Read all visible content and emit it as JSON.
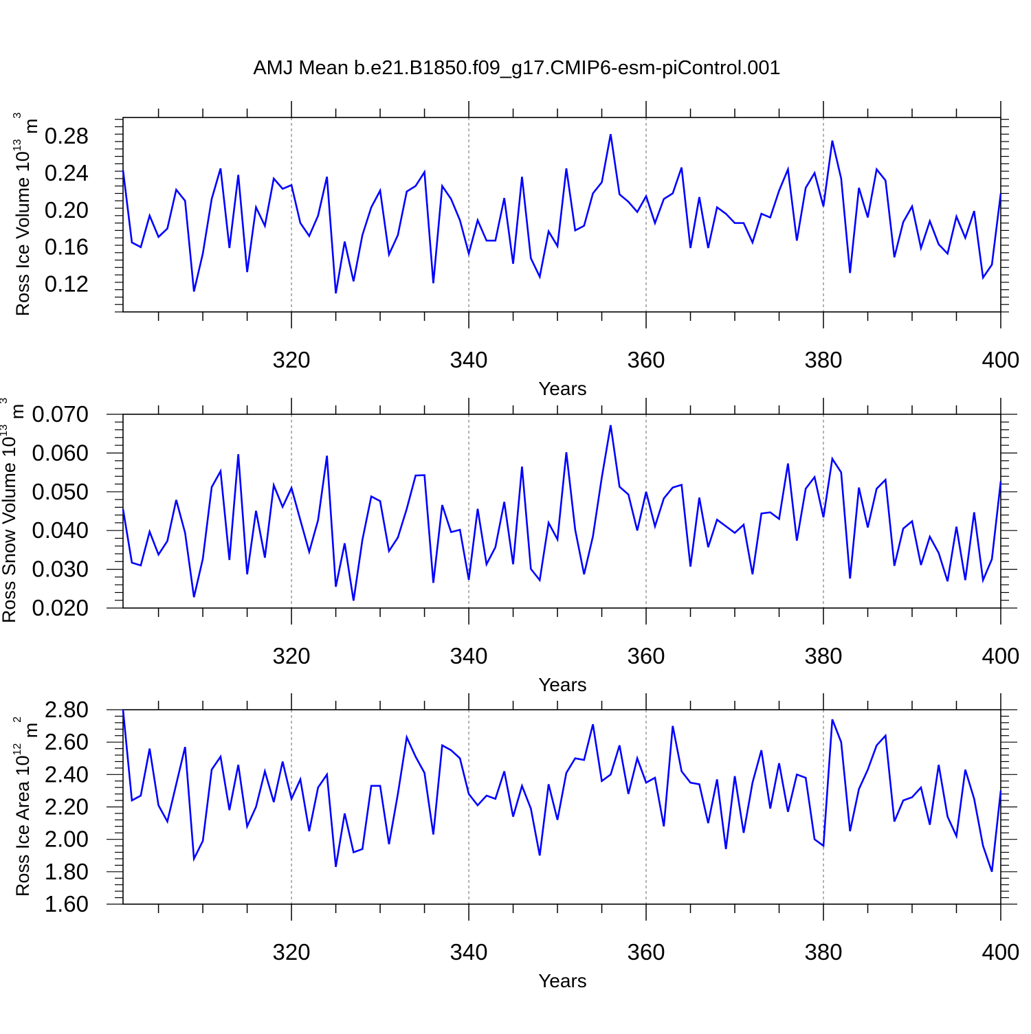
{
  "figure": {
    "title": "AMJ Mean b.e21.B1850.f09_g17.CMIP6-esm-piControl.001",
    "line_color": "#0000ff"
  },
  "chart_data": [
    {
      "type": "line",
      "ylabel": "Ross Ice Volume 10",
      "ylabel_exp": "13",
      "ylabel_unit": " m",
      "ylabel_unit_exp": "3",
      "xlabel": "Years",
      "xlim": [
        301,
        400
      ],
      "ylim": [
        0.09,
        0.3
      ],
      "xticks": [
        320,
        340,
        360,
        380,
        400
      ],
      "xtick_labels": [
        "320",
        "340",
        "360",
        "380",
        "400"
      ],
      "yticks": [
        0.12,
        0.16,
        0.2,
        0.24,
        0.28
      ],
      "ytick_labels": [
        "0.12",
        "0.16",
        "0.20",
        "0.24",
        "0.28"
      ],
      "series": [
        {
          "x_start": 301,
          "values": [
            0.243,
            0.165,
            0.16,
            0.194,
            0.171,
            0.18,
            0.222,
            0.21,
            0.112,
            0.153,
            0.212,
            0.245,
            0.159,
            0.238,
            0.133,
            0.203,
            0.183,
            0.234,
            0.223,
            0.227,
            0.186,
            0.172,
            0.194,
            0.236,
            0.11,
            0.166,
            0.123,
            0.173,
            0.203,
            0.221,
            0.152,
            0.173,
            0.22,
            0.226,
            0.241,
            0.121,
            0.226,
            0.212,
            0.189,
            0.153,
            0.189,
            0.167,
            0.167,
            0.213,
            0.142,
            0.236,
            0.148,
            0.128,
            0.177,
            0.161,
            0.245,
            0.178,
            0.183,
            0.218,
            0.23,
            0.282,
            0.217,
            0.209,
            0.198,
            0.215,
            0.186,
            0.212,
            0.218,
            0.246,
            0.159,
            0.214,
            0.159,
            0.203,
            0.196,
            0.186,
            0.186,
            0.165,
            0.196,
            0.192,
            0.221,
            0.244,
            0.167,
            0.224,
            0.24,
            0.204,
            0.275,
            0.234,
            0.132,
            0.224,
            0.192,
            0.244,
            0.232,
            0.149,
            0.187,
            0.204,
            0.159,
            0.188,
            0.163,
            0.153,
            0.193,
            0.17,
            0.199,
            0.127,
            0.141,
            0.218
          ]
        }
      ]
    },
    {
      "type": "line",
      "ylabel": "Ross Snow Volume 10",
      "ylabel_exp": "13",
      "ylabel_unit": " m",
      "ylabel_unit_exp": "3",
      "xlabel": "Years",
      "xlim": [
        301,
        400
      ],
      "ylim": [
        0.02,
        0.07
      ],
      "xticks": [
        320,
        340,
        360,
        380,
        400
      ],
      "xtick_labels": [
        "320",
        "340",
        "360",
        "380",
        "400"
      ],
      "yticks": [
        0.02,
        0.03,
        0.04,
        0.05,
        0.06,
        0.07
      ],
      "ytick_labels": [
        "0.020",
        "0.030",
        "0.040",
        "0.050",
        "0.060",
        "0.070"
      ],
      "series": [
        {
          "x_start": 301,
          "values": [
            0.0455,
            0.0317,
            0.031,
            0.0397,
            0.0338,
            0.0373,
            0.0479,
            0.0394,
            0.0228,
            0.0327,
            0.0512,
            0.0553,
            0.0324,
            0.0597,
            0.0287,
            0.0451,
            0.033,
            0.0517,
            0.0461,
            0.051,
            0.0427,
            0.0345,
            0.0427,
            0.0593,
            0.0255,
            0.0367,
            0.0219,
            0.0376,
            0.0488,
            0.0476,
            0.0347,
            0.0382,
            0.0456,
            0.0542,
            0.0543,
            0.0265,
            0.0466,
            0.0396,
            0.0402,
            0.0273,
            0.0456,
            0.0313,
            0.0357,
            0.0474,
            0.0313,
            0.0565,
            0.0301,
            0.0272,
            0.042,
            0.0377,
            0.0602,
            0.0402,
            0.0287,
            0.0385,
            0.0537,
            0.0672,
            0.0513,
            0.0493,
            0.04,
            0.05,
            0.0411,
            0.0483,
            0.0511,
            0.0518,
            0.0307,
            0.0485,
            0.0357,
            0.0428,
            0.0411,
            0.0394,
            0.0415,
            0.0287,
            0.0444,
            0.0447,
            0.043,
            0.0573,
            0.0374,
            0.0508,
            0.0538,
            0.0434,
            0.0585,
            0.055,
            0.0276,
            0.0511,
            0.0408,
            0.0508,
            0.0531,
            0.0309,
            0.0405,
            0.0424,
            0.0311,
            0.0384,
            0.0342,
            0.0269,
            0.041,
            0.0272,
            0.0447,
            0.0272,
            0.0326,
            0.0527
          ]
        }
      ]
    },
    {
      "type": "line",
      "ylabel": "Ross Ice Area 10",
      "ylabel_exp": "12",
      "ylabel_unit": " m",
      "ylabel_unit_exp": "2",
      "xlabel": "Years",
      "xlim": [
        301,
        400
      ],
      "ylim": [
        1.6,
        2.8
      ],
      "xticks": [
        320,
        340,
        360,
        380,
        400
      ],
      "xtick_labels": [
        "320",
        "340",
        "360",
        "380",
        "400"
      ],
      "yticks": [
        1.6,
        1.8,
        2.0,
        2.2,
        2.4,
        2.6,
        2.8
      ],
      "ytick_labels": [
        "1.60",
        "1.80",
        "2.00",
        "2.20",
        "2.40",
        "2.60",
        "2.80"
      ],
      "series": [
        {
          "x_start": 301,
          "values": [
            2.8,
            2.24,
            2.27,
            2.56,
            2.21,
            2.11,
            2.34,
            2.57,
            1.88,
            1.99,
            2.43,
            2.51,
            2.18,
            2.46,
            2.08,
            2.2,
            2.42,
            2.23,
            2.48,
            2.25,
            2.37,
            2.05,
            2.32,
            2.4,
            1.83,
            2.16,
            1.92,
            1.94,
            2.33,
            2.33,
            1.97,
            2.28,
            2.63,
            2.51,
            2.41,
            2.03,
            2.58,
            2.55,
            2.5,
            2.28,
            2.21,
            2.27,
            2.25,
            2.42,
            2.14,
            2.33,
            2.19,
            1.9,
            2.34,
            2.12,
            2.41,
            2.5,
            2.49,
            2.71,
            2.36,
            2.4,
            2.58,
            2.28,
            2.5,
            2.35,
            2.38,
            2.08,
            2.7,
            2.42,
            2.35,
            2.34,
            2.1,
            2.37,
            1.94,
            2.39,
            2.04,
            2.35,
            2.55,
            2.19,
            2.47,
            2.17,
            2.4,
            2.38,
            2.0,
            1.96,
            2.74,
            2.6,
            2.05,
            2.31,
            2.43,
            2.58,
            2.64,
            2.11,
            2.24,
            2.26,
            2.32,
            2.09,
            2.46,
            2.14,
            2.02,
            2.43,
            2.25,
            1.96,
            1.8,
            2.3
          ]
        }
      ]
    }
  ]
}
